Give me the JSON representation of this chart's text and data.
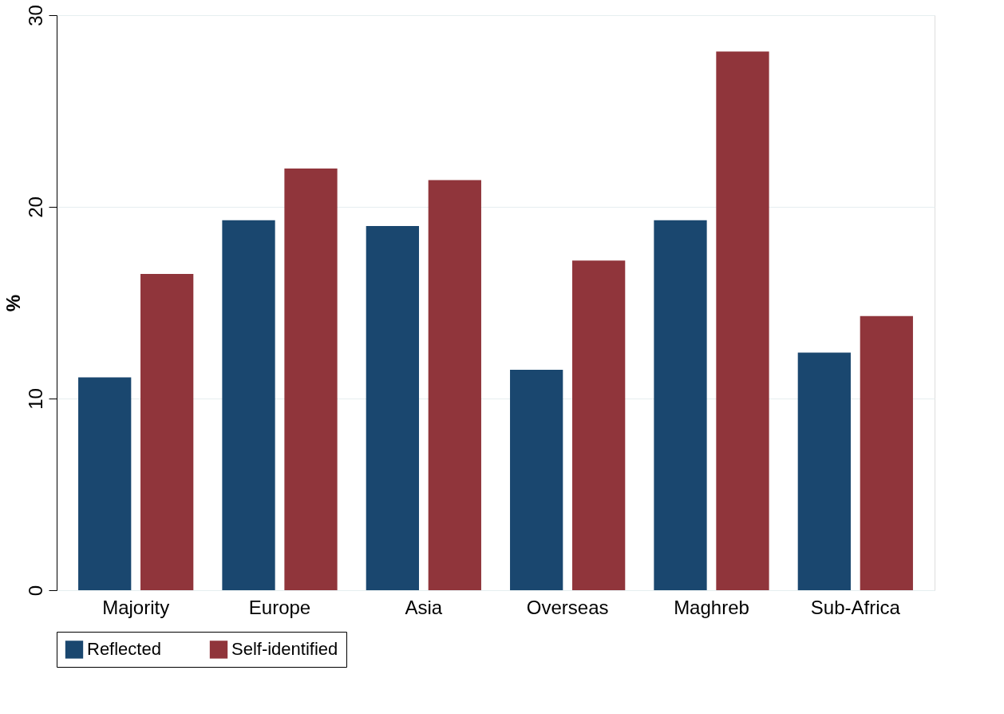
{
  "chart_data": {
    "type": "bar",
    "ylabel": "%",
    "categories": [
      "Majority",
      "Europe",
      "Asia",
      "Overseas",
      "Maghreb",
      "Sub-Africa"
    ],
    "series": [
      {
        "name": "Reflected",
        "color": "#1a476f",
        "values": [
          11.1,
          19.3,
          19.0,
          11.5,
          19.3,
          12.4
        ]
      },
      {
        "name": "Self-identified",
        "color": "#90353b",
        "values": [
          16.5,
          22.0,
          21.4,
          17.2,
          28.1,
          14.3
        ]
      }
    ],
    "ylim": [
      0,
      30
    ],
    "yticks": [
      0,
      10,
      20,
      30
    ],
    "grid": "y",
    "legend": "bottom"
  }
}
